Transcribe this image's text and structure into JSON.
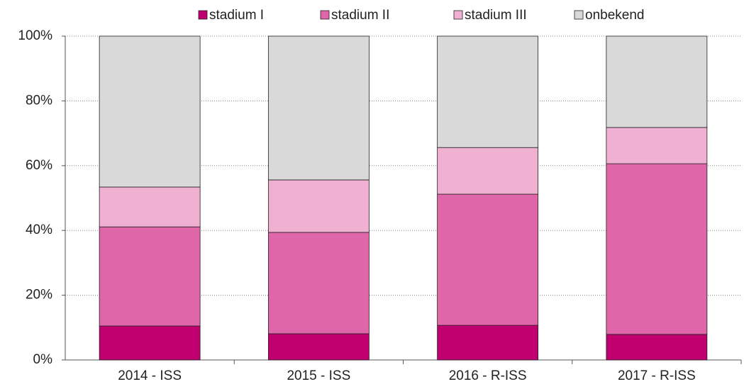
{
  "chart_data": {
    "type": "stacked_bar",
    "categories": [
      "2014 - ISS",
      "2015 - ISS",
      "2016 - R-ISS",
      "2017 - R-ISS"
    ],
    "series": [
      {
        "name": "stadium I",
        "color": "#c0006e",
        "values": [
          10.5,
          8.1,
          10.7,
          7.9
        ]
      },
      {
        "name": "stadium II",
        "color": "#e066aa",
        "values": [
          30.6,
          31.3,
          40.5,
          52.7
        ]
      },
      {
        "name": "stadium III",
        "color": "#f0b0d2",
        "values": [
          12.3,
          16.2,
          14.4,
          11.2
        ]
      },
      {
        "name": "onbekend",
        "color": "#d9d9d9",
        "values": [
          46.6,
          44.4,
          34.4,
          28.2
        ]
      }
    ],
    "ylim": [
      0,
      100
    ],
    "yticks": [
      {
        "value": 0,
        "label": "0%"
      },
      {
        "value": 20,
        "label": "20%"
      },
      {
        "value": 40,
        "label": "40%"
      },
      {
        "value": 60,
        "label": "60%"
      },
      {
        "value": 80,
        "label": "80%"
      },
      {
        "value": 100,
        "label": "100%"
      }
    ],
    "grid": true,
    "legend": "top"
  }
}
